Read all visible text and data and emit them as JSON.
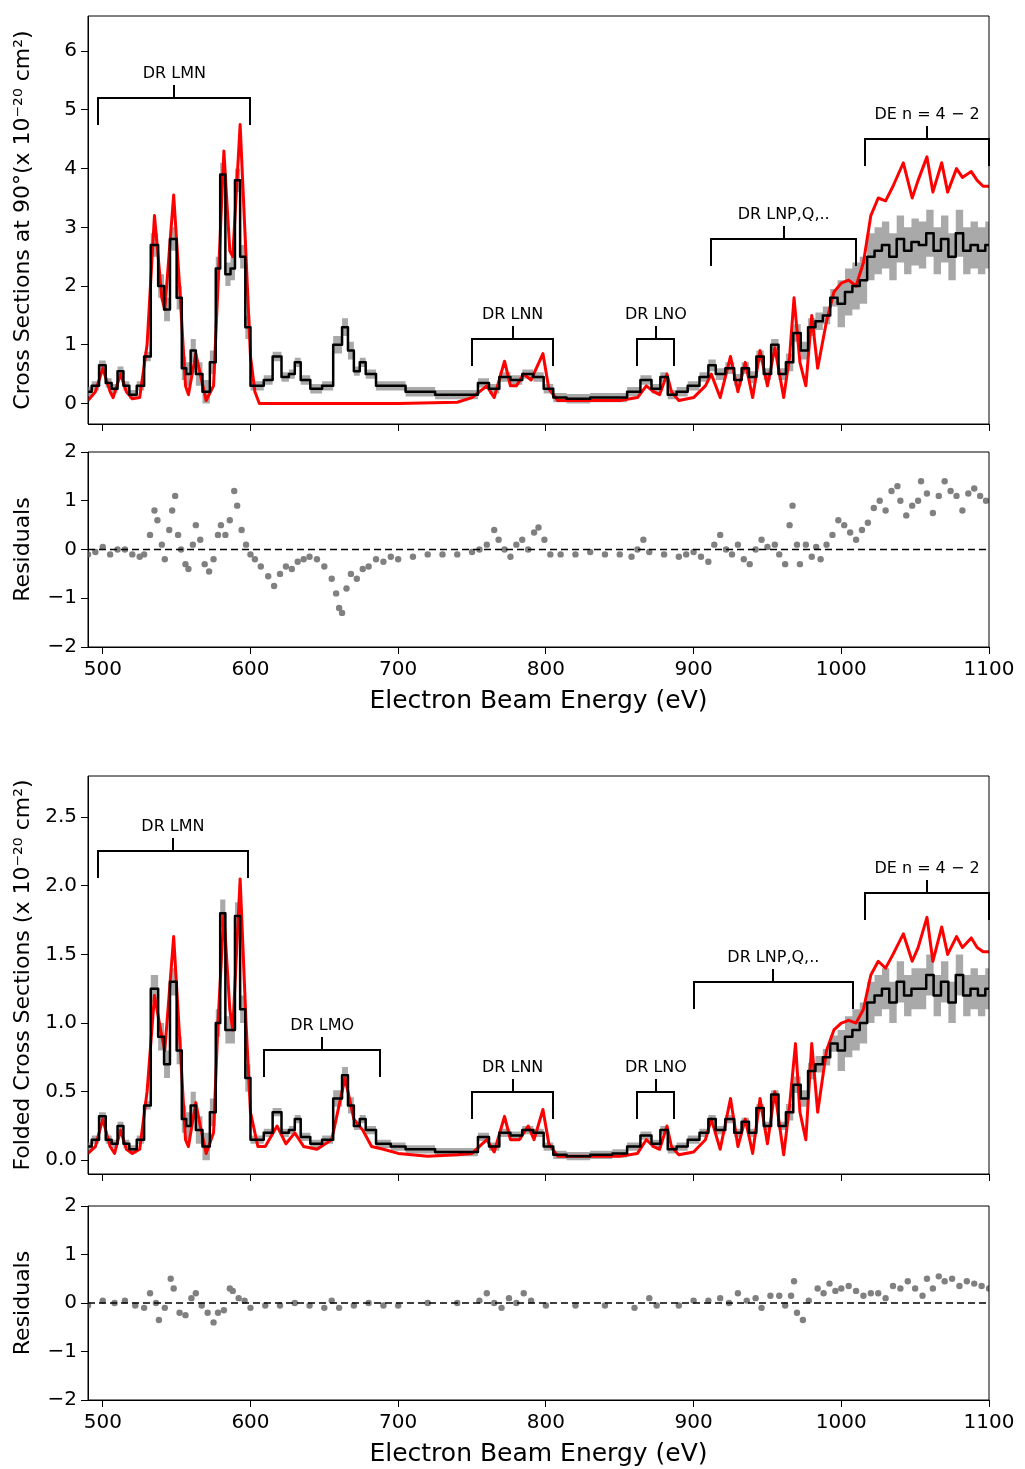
{
  "chart_data": [
    {
      "type": "line",
      "ylabel": "Cross Sections at 90°(x 10⁻²⁰ cm²)",
      "xlim": [
        490,
        1100
      ],
      "xticks": [
        500,
        600,
        700,
        800,
        900,
        1000,
        1100
      ],
      "ylim": [
        -0.35,
        6.6
      ],
      "yticks": [
        0,
        1,
        2,
        3,
        4,
        5,
        6
      ],
      "tick_labels": "y",
      "series": [
        {
          "color": "#ff0000",
          "x": [
            490,
            495,
            500,
            505,
            507,
            512,
            516,
            520,
            525,
            530,
            535,
            540,
            542,
            548,
            552,
            556,
            558,
            563,
            566,
            570,
            575,
            578,
            582,
            586,
            588,
            593,
            597,
            600,
            603,
            606,
            700,
            740,
            750,
            760,
            765,
            772,
            776,
            780,
            785,
            790,
            798,
            802,
            808,
            850,
            862,
            868,
            873,
            877,
            882,
            885,
            890,
            900,
            908,
            912,
            918,
            925,
            930,
            935,
            940,
            945,
            950,
            955,
            961,
            965,
            968,
            972,
            976,
            980,
            984,
            990,
            995,
            1000,
            1005,
            1010,
            1015,
            1020,
            1025,
            1030,
            1035,
            1042,
            1048,
            1052,
            1058,
            1062,
            1068,
            1072,
            1078,
            1082,
            1088,
            1092,
            1096,
            1100
          ],
          "values": [
            0.05,
            0.2,
            0.6,
            0.2,
            0.1,
            0.5,
            0.2,
            0.08,
            0.1,
            1.0,
            3.2,
            1.8,
            1.6,
            3.55,
            2.0,
            0.3,
            0.15,
            0.85,
            0.5,
            0.05,
            0.3,
            2.0,
            4.3,
            2.6,
            2.5,
            4.75,
            2.5,
            0.8,
            0.2,
            0.0,
            0.0,
            0.02,
            0.1,
            0.3,
            0.1,
            0.72,
            0.3,
            0.3,
            0.5,
            0.4,
            0.85,
            0.25,
            0.05,
            0.05,
            0.1,
            0.3,
            0.2,
            0.15,
            0.5,
            0.2,
            0.05,
            0.1,
            0.3,
            0.5,
            0.1,
            0.8,
            0.2,
            0.7,
            0.1,
            0.9,
            0.3,
            0.95,
            0.1,
            0.8,
            1.8,
            0.7,
            0.3,
            1.5,
            0.6,
            1.4,
            1.9,
            2.05,
            2.1,
            2.0,
            2.4,
            3.2,
            3.5,
            3.45,
            3.7,
            4.1,
            3.5,
            3.8,
            4.2,
            3.6,
            4.1,
            3.6,
            4.0,
            3.85,
            3.95,
            3.8,
            3.7,
            3.7
          ]
        },
        {
          "type": "step",
          "color": "#000000",
          "x": [
            490,
            495,
            500,
            504,
            508,
            512,
            516,
            520,
            526,
            530,
            535,
            540,
            543,
            548,
            552,
            555,
            558,
            561,
            565,
            570,
            575,
            578,
            581,
            585,
            588,
            591,
            595,
            598,
            602,
            606,
            612,
            618,
            624,
            628,
            632,
            636,
            645,
            652,
            660,
            664,
            668,
            672,
            676,
            680,
            690,
            700,
            710,
            720,
            730,
            740,
            750,
            758,
            765,
            772,
            780,
            788,
            795,
            802,
            808,
            820,
            840,
            850,
            860,
            868,
            875,
            880,
            885,
            892,
            900,
            908,
            912,
            918,
            925,
            930,
            935,
            940,
            945,
            950,
            955,
            960,
            965,
            970,
            975,
            980,
            985,
            990,
            995,
            1000,
            1005,
            1010,
            1015,
            1020,
            1025,
            1030,
            1035,
            1040,
            1045,
            1050,
            1055,
            1060,
            1065,
            1070,
            1075,
            1080,
            1085,
            1090,
            1095,
            1100
          ],
          "values": [
            0.2,
            0.3,
            0.65,
            0.35,
            0.25,
            0.55,
            0.3,
            0.15,
            0.3,
            0.8,
            2.7,
            2.0,
            1.6,
            2.8,
            1.8,
            0.6,
            0.5,
            0.9,
            0.5,
            0.2,
            0.7,
            2.3,
            3.9,
            2.2,
            2.3,
            3.8,
            2.5,
            1.3,
            0.3,
            0.3,
            0.4,
            0.8,
            0.45,
            0.5,
            0.7,
            0.4,
            0.25,
            0.3,
            1.0,
            1.3,
            0.9,
            0.55,
            0.7,
            0.5,
            0.3,
            0.3,
            0.2,
            0.2,
            0.15,
            0.15,
            0.15,
            0.35,
            0.25,
            0.45,
            0.4,
            0.5,
            0.45,
            0.25,
            0.1,
            0.08,
            0.1,
            0.1,
            0.2,
            0.4,
            0.25,
            0.45,
            0.15,
            0.2,
            0.3,
            0.45,
            0.65,
            0.5,
            0.6,
            0.4,
            0.6,
            0.45,
            0.8,
            0.5,
            1.0,
            0.5,
            0.7,
            1.2,
            0.9,
            1.3,
            1.4,
            1.5,
            1.8,
            1.7,
            1.9,
            2.0,
            2.1,
            2.5,
            2.6,
            2.7,
            2.5,
            2.8,
            2.6,
            2.75,
            2.7,
            2.9,
            2.6,
            2.8,
            2.5,
            2.9,
            2.6,
            2.7,
            2.6,
            2.7
          ],
          "lower": [
            0.12,
            0.22,
            0.57,
            0.27,
            0.17,
            0.47,
            0.22,
            0.07,
            0.22,
            0.72,
            2.5,
            1.8,
            1.4,
            2.6,
            1.6,
            0.4,
            0.3,
            0.7,
            0.3,
            0.0,
            0.5,
            2.1,
            3.7,
            2.0,
            2.1,
            3.6,
            2.3,
            1.1,
            0.22,
            0.22,
            0.32,
            0.72,
            0.37,
            0.42,
            0.62,
            0.32,
            0.17,
            0.22,
            0.85,
            1.15,
            0.75,
            0.47,
            0.62,
            0.42,
            0.22,
            0.22,
            0.12,
            0.12,
            0.07,
            0.07,
            0.07,
            0.27,
            0.17,
            0.37,
            0.32,
            0.42,
            0.37,
            0.17,
            0.02,
            0.0,
            0.02,
            0.02,
            0.12,
            0.32,
            0.17,
            0.37,
            0.07,
            0.12,
            0.22,
            0.37,
            0.55,
            0.4,
            0.5,
            0.3,
            0.5,
            0.35,
            0.7,
            0.4,
            0.9,
            0.4,
            0.55,
            1.05,
            0.75,
            1.15,
            1.25,
            1.35,
            1.65,
            1.3,
            1.5,
            1.6,
            1.7,
            2.1,
            2.2,
            2.3,
            2.1,
            2.4,
            2.2,
            2.35,
            2.3,
            2.5,
            2.2,
            2.4,
            2.1,
            2.5,
            2.2,
            2.3,
            2.2,
            2.3
          ],
          "upper": [
            0.28,
            0.38,
            0.73,
            0.43,
            0.33,
            0.63,
            0.38,
            0.23,
            0.38,
            0.88,
            2.9,
            2.2,
            1.8,
            3.0,
            2.0,
            0.8,
            0.7,
            1.1,
            0.7,
            0.4,
            0.9,
            2.5,
            4.1,
            2.4,
            2.5,
            4.0,
            2.7,
            1.5,
            0.38,
            0.38,
            0.48,
            0.88,
            0.53,
            0.58,
            0.78,
            0.48,
            0.33,
            0.38,
            1.15,
            1.45,
            1.05,
            0.63,
            0.78,
            0.58,
            0.38,
            0.38,
            0.28,
            0.28,
            0.23,
            0.23,
            0.23,
            0.43,
            0.33,
            0.53,
            0.48,
            0.58,
            0.53,
            0.33,
            0.18,
            0.16,
            0.18,
            0.18,
            0.28,
            0.48,
            0.33,
            0.53,
            0.23,
            0.28,
            0.38,
            0.53,
            0.75,
            0.6,
            0.7,
            0.5,
            0.7,
            0.55,
            0.9,
            0.6,
            1.1,
            0.6,
            0.85,
            1.35,
            1.05,
            1.45,
            1.55,
            1.65,
            1.95,
            2.1,
            2.3,
            2.4,
            2.5,
            2.9,
            3.0,
            3.1,
            2.9,
            3.2,
            3.0,
            3.15,
            3.1,
            3.3,
            3.0,
            3.2,
            2.9,
            3.3,
            3.0,
            3.1,
            3.0,
            3.1
          ]
        }
      ],
      "annotations": [
        "DR LMN",
        "DR LNN",
        "DR LNO",
        "DR LNP,Q,..",
        "DE n = 4 − 2"
      ]
    },
    {
      "type": "scatter",
      "ylabel": "Residuals",
      "xlabel": "Electron Beam Energy (eV)",
      "xlim": [
        490,
        1100
      ],
      "xticks": [
        500,
        600,
        700,
        800,
        900,
        1000,
        1100
      ],
      "ylim": [
        -2,
        2
      ],
      "yticks": [
        {
          "value": -2,
          "label": "−2"
        },
        {
          "value": -1,
          "label": "−1"
        },
        0,
        1,
        2
      ],
      "marker": "circle",
      "color": "#808080",
      "x": [
        490,
        495,
        500,
        505,
        510,
        515,
        520,
        525,
        528,
        532,
        535,
        537,
        540,
        542,
        545,
        547,
        549,
        551,
        553,
        556,
        558,
        561,
        563,
        566,
        569,
        572,
        575,
        578,
        580,
        583,
        586,
        589,
        591,
        594,
        597,
        600,
        603,
        607,
        612,
        616,
        620,
        624,
        628,
        632,
        636,
        640,
        645,
        650,
        655,
        658,
        660,
        662,
        665,
        668,
        672,
        676,
        680,
        685,
        690,
        695,
        700,
        710,
        720,
        730,
        740,
        750,
        755,
        760,
        765,
        768,
        772,
        776,
        780,
        784,
        788,
        792,
        795,
        799,
        803,
        810,
        820,
        830,
        840,
        850,
        858,
        862,
        866,
        870,
        880,
        890,
        895,
        900,
        905,
        910,
        914,
        918,
        922,
        926,
        930,
        934,
        938,
        942,
        946,
        950,
        955,
        958,
        962,
        965,
        967,
        970,
        972,
        976,
        980,
        983,
        986,
        990,
        994,
        998,
        1002,
        1006,
        1010,
        1014,
        1018,
        1022,
        1026,
        1030,
        1034,
        1038,
        1040,
        1044,
        1048,
        1052,
        1054,
        1058,
        1062,
        1066,
        1070,
        1074,
        1078,
        1082,
        1086,
        1090,
        1094,
        1098
      ],
      "values": [
        -0.1,
        -0.05,
        0.05,
        -0.1,
        0.0,
        0.0,
        -0.1,
        -0.15,
        -0.1,
        0.3,
        0.8,
        0.6,
        0.1,
        -0.2,
        0.4,
        0.8,
        1.1,
        0.3,
        0.0,
        -0.3,
        -0.4,
        0.1,
        0.5,
        0.2,
        -0.3,
        -0.45,
        -0.2,
        0.3,
        0.5,
        0.3,
        0.6,
        1.2,
        0.9,
        0.4,
        0.1,
        -0.1,
        -0.2,
        -0.35,
        -0.55,
        -0.75,
        -0.5,
        -0.35,
        -0.4,
        -0.25,
        -0.2,
        -0.15,
        -0.2,
        -0.35,
        -0.6,
        -0.9,
        -1.2,
        -1.3,
        -0.8,
        -0.5,
        -0.6,
        -0.4,
        -0.35,
        -0.2,
        -0.25,
        -0.15,
        -0.2,
        -0.15,
        -0.1,
        -0.1,
        -0.1,
        -0.05,
        0.0,
        0.1,
        0.4,
        0.2,
        0.0,
        -0.15,
        0.1,
        0.2,
        0.0,
        0.35,
        0.45,
        0.2,
        -0.1,
        -0.1,
        -0.1,
        -0.05,
        -0.1,
        -0.1,
        -0.15,
        0.0,
        0.2,
        -0.05,
        -0.1,
        -0.15,
        -0.1,
        -0.05,
        -0.15,
        -0.25,
        0.1,
        0.3,
        0.0,
        -0.1,
        0.1,
        -0.2,
        -0.3,
        0.0,
        0.2,
        0.05,
        0.1,
        -0.1,
        -0.3,
        0.5,
        0.9,
        0.1,
        -0.3,
        0.1,
        -0.15,
        0.05,
        -0.2,
        0.1,
        0.3,
        0.6,
        0.5,
        0.35,
        0.2,
        0.4,
        0.55,
        0.85,
        1.0,
        0.8,
        1.2,
        1.3,
        1.0,
        0.7,
        0.9,
        1.0,
        1.4,
        1.15,
        0.75,
        1.1,
        1.4,
        1.2,
        1.1,
        0.8,
        1.15,
        1.25,
        1.1,
        1.0
      ],
      "ref_lines": [
        {
          "axis": "y",
          "value": 0,
          "color": "#000000",
          "line_style": "dashed"
        }
      ]
    },
    {
      "type": "line",
      "ylabel": "Folded Cross Sections (x 10⁻²⁰ cm²)",
      "xlim": [
        490,
        1100
      ],
      "xticks": [
        500,
        600,
        700,
        800,
        900,
        1000,
        1100
      ],
      "ylim": [
        -0.1,
        2.8
      ],
      "yticks": [
        {
          "value": 0,
          "label": "0.0"
        },
        {
          "value": 0.5,
          "label": "0.5"
        },
        {
          "value": 1,
          "label": "1.0"
        },
        {
          "value": 1.5,
          "label": "1.5"
        },
        {
          "value": 2,
          "label": "2.0"
        },
        {
          "value": 2.5,
          "label": "2.5"
        }
      ],
      "tick_labels": "y",
      "series": [
        {
          "color": "#ff0000",
          "x": [
            490,
            495,
            500,
            505,
            508,
            512,
            516,
            520,
            525,
            530,
            535,
            540,
            542,
            548,
            552,
            556,
            558,
            563,
            566,
            570,
            575,
            578,
            582,
            586,
            588,
            593,
            597,
            600,
            605,
            610,
            618,
            624,
            630,
            636,
            645,
            655,
            664,
            670,
            676,
            682,
            690,
            700,
            720,
            740,
            750,
            760,
            765,
            772,
            776,
            782,
            788,
            792,
            798,
            802,
            808,
            850,
            862,
            868,
            873,
            877,
            882,
            885,
            890,
            900,
            908,
            912,
            918,
            925,
            930,
            935,
            940,
            945,
            950,
            955,
            961,
            965,
            969,
            972,
            976,
            980,
            984,
            990,
            995,
            1000,
            1005,
            1010,
            1015,
            1020,
            1025,
            1030,
            1035,
            1042,
            1048,
            1052,
            1058,
            1062,
            1068,
            1072,
            1078,
            1082,
            1088,
            1092,
            1096,
            1100
          ],
          "values": [
            0.05,
            0.1,
            0.3,
            0.1,
            0.05,
            0.22,
            0.08,
            0.05,
            0.08,
            0.5,
            1.2,
            0.9,
            0.8,
            1.63,
            0.9,
            0.15,
            0.1,
            0.42,
            0.25,
            0.05,
            0.2,
            1.0,
            1.8,
            1.1,
            0.95,
            2.05,
            1.0,
            0.35,
            0.1,
            0.1,
            0.25,
            0.12,
            0.2,
            0.1,
            0.08,
            0.15,
            0.6,
            0.3,
            0.22,
            0.1,
            0.08,
            0.05,
            0.03,
            0.04,
            0.05,
            0.15,
            0.06,
            0.32,
            0.15,
            0.15,
            0.25,
            0.15,
            0.37,
            0.12,
            0.03,
            0.03,
            0.05,
            0.15,
            0.1,
            0.08,
            0.25,
            0.1,
            0.04,
            0.06,
            0.15,
            0.3,
            0.08,
            0.45,
            0.1,
            0.3,
            0.05,
            0.45,
            0.12,
            0.5,
            0.04,
            0.4,
            0.85,
            0.35,
            0.15,
            0.85,
            0.35,
            0.8,
            0.95,
            1.0,
            1.02,
            1.0,
            1.1,
            1.35,
            1.45,
            1.4,
            1.5,
            1.65,
            1.45,
            1.55,
            1.77,
            1.45,
            1.7,
            1.5,
            1.63,
            1.55,
            1.62,
            1.55,
            1.52,
            1.52
          ]
        },
        {
          "type": "step",
          "color": "#000000",
          "x": [
            490,
            495,
            500,
            504,
            508,
            512,
            516,
            520,
            526,
            530,
            535,
            540,
            543,
            548,
            552,
            555,
            558,
            561,
            565,
            570,
            575,
            578,
            581,
            585,
            588,
            591,
            595,
            598,
            602,
            606,
            612,
            618,
            624,
            628,
            632,
            636,
            645,
            652,
            660,
            664,
            668,
            672,
            676,
            680,
            690,
            700,
            710,
            720,
            730,
            740,
            750,
            758,
            765,
            772,
            780,
            788,
            795,
            802,
            808,
            820,
            840,
            850,
            860,
            868,
            875,
            880,
            885,
            892,
            900,
            908,
            912,
            918,
            925,
            930,
            935,
            940,
            945,
            950,
            955,
            960,
            965,
            970,
            975,
            980,
            985,
            990,
            995,
            1000,
            1005,
            1010,
            1015,
            1020,
            1025,
            1030,
            1035,
            1040,
            1045,
            1050,
            1055,
            1060,
            1065,
            1070,
            1075,
            1080,
            1085,
            1090,
            1095,
            1100
          ],
          "values": [
            0.1,
            0.15,
            0.32,
            0.15,
            0.12,
            0.25,
            0.12,
            0.08,
            0.15,
            0.4,
            1.25,
            0.9,
            0.7,
            1.3,
            0.8,
            0.3,
            0.25,
            0.4,
            0.22,
            0.1,
            0.35,
            1.0,
            1.8,
            0.95,
            0.95,
            1.78,
            1.1,
            0.6,
            0.15,
            0.15,
            0.2,
            0.35,
            0.2,
            0.22,
            0.3,
            0.17,
            0.12,
            0.15,
            0.45,
            0.62,
            0.4,
            0.25,
            0.3,
            0.22,
            0.12,
            0.1,
            0.08,
            0.08,
            0.06,
            0.06,
            0.06,
            0.17,
            0.1,
            0.2,
            0.18,
            0.22,
            0.2,
            0.1,
            0.04,
            0.03,
            0.04,
            0.05,
            0.1,
            0.18,
            0.12,
            0.22,
            0.08,
            0.1,
            0.15,
            0.2,
            0.3,
            0.22,
            0.3,
            0.2,
            0.28,
            0.2,
            0.38,
            0.25,
            0.48,
            0.25,
            0.35,
            0.55,
            0.45,
            0.65,
            0.7,
            0.75,
            0.85,
            0.8,
            0.9,
            0.95,
            1.0,
            1.15,
            1.2,
            1.25,
            1.15,
            1.3,
            1.2,
            1.25,
            1.25,
            1.35,
            1.2,
            1.3,
            1.15,
            1.35,
            1.2,
            1.25,
            1.2,
            1.25
          ],
          "lower": [
            0.07,
            0.12,
            0.29,
            0.12,
            0.09,
            0.22,
            0.09,
            0.05,
            0.12,
            0.37,
            1.15,
            0.8,
            0.6,
            1.2,
            0.7,
            0.2,
            0.15,
            0.3,
            0.12,
            0.0,
            0.25,
            0.9,
            1.7,
            0.85,
            0.85,
            1.68,
            1.0,
            0.5,
            0.12,
            0.12,
            0.17,
            0.32,
            0.17,
            0.19,
            0.27,
            0.14,
            0.09,
            0.12,
            0.39,
            0.56,
            0.34,
            0.22,
            0.27,
            0.19,
            0.09,
            0.07,
            0.05,
            0.05,
            0.03,
            0.03,
            0.03,
            0.14,
            0.07,
            0.17,
            0.15,
            0.19,
            0.17,
            0.07,
            0.01,
            0.0,
            0.01,
            0.02,
            0.07,
            0.15,
            0.09,
            0.19,
            0.05,
            0.07,
            0.12,
            0.17,
            0.27,
            0.19,
            0.27,
            0.17,
            0.25,
            0.17,
            0.35,
            0.22,
            0.45,
            0.22,
            0.29,
            0.49,
            0.39,
            0.59,
            0.64,
            0.69,
            0.79,
            0.65,
            0.75,
            0.8,
            0.85,
            1.0,
            1.05,
            1.1,
            1.0,
            1.15,
            1.05,
            1.1,
            1.1,
            1.2,
            1.05,
            1.15,
            1.0,
            1.2,
            1.05,
            1.1,
            1.05,
            1.1
          ],
          "upper": [
            0.13,
            0.18,
            0.35,
            0.18,
            0.15,
            0.28,
            0.15,
            0.11,
            0.18,
            0.43,
            1.35,
            1.0,
            0.8,
            1.4,
            0.9,
            0.4,
            0.35,
            0.5,
            0.32,
            0.2,
            0.45,
            1.1,
            1.9,
            1.05,
            1.05,
            1.88,
            1.2,
            0.7,
            0.18,
            0.18,
            0.23,
            0.38,
            0.23,
            0.25,
            0.33,
            0.2,
            0.15,
            0.18,
            0.51,
            0.68,
            0.46,
            0.28,
            0.33,
            0.25,
            0.15,
            0.13,
            0.11,
            0.11,
            0.09,
            0.09,
            0.09,
            0.2,
            0.13,
            0.23,
            0.21,
            0.25,
            0.23,
            0.13,
            0.07,
            0.06,
            0.07,
            0.08,
            0.13,
            0.21,
            0.15,
            0.25,
            0.11,
            0.13,
            0.18,
            0.23,
            0.33,
            0.25,
            0.33,
            0.23,
            0.31,
            0.23,
            0.41,
            0.28,
            0.51,
            0.28,
            0.41,
            0.61,
            0.51,
            0.71,
            0.76,
            0.81,
            0.91,
            0.95,
            1.05,
            1.1,
            1.15,
            1.3,
            1.35,
            1.4,
            1.3,
            1.45,
            1.35,
            1.4,
            1.4,
            1.5,
            1.35,
            1.45,
            1.3,
            1.5,
            1.35,
            1.4,
            1.35,
            1.4
          ]
        }
      ],
      "annotations": [
        "DR LMN",
        "DR LMO",
        "DR LNN",
        "DR LNO",
        "DR LNP,Q,..",
        "DE n = 4 − 2"
      ]
    },
    {
      "type": "scatter",
      "ylabel": "Residuals",
      "xlabel": "Electron Beam Energy (eV)",
      "xlim": [
        490,
        1100
      ],
      "xticks": [
        500,
        600,
        700,
        800,
        900,
        1000,
        1100
      ],
      "ylim": [
        -2,
        2
      ],
      "yticks": [
        {
          "value": -2,
          "label": "−2"
        },
        {
          "value": -1,
          "label": "−1"
        },
        0,
        1,
        2
      ],
      "marker": "circle",
      "color": "#808080",
      "x": [
        490,
        500,
        508,
        515,
        522,
        528,
        532,
        536,
        538,
        542,
        546,
        548,
        552,
        556,
        560,
        563,
        567,
        571,
        575,
        578,
        582,
        586,
        588,
        592,
        596,
        600,
        610,
        620,
        630,
        640,
        650,
        655,
        660,
        670,
        680,
        690,
        700,
        720,
        740,
        755,
        760,
        765,
        770,
        775,
        780,
        785,
        790,
        800,
        820,
        840,
        860,
        870,
        875,
        890,
        900,
        910,
        918,
        924,
        930,
        936,
        942,
        946,
        952,
        958,
        962,
        966,
        968,
        970,
        974,
        978,
        984,
        988,
        992,
        996,
        1000,
        1005,
        1010,
        1015,
        1020,
        1025,
        1030,
        1035,
        1040,
        1045,
        1050,
        1055,
        1058,
        1062,
        1066,
        1070,
        1075,
        1080,
        1085,
        1090,
        1095,
        1100
      ],
      "values": [
        -0.05,
        0.05,
        0.0,
        0.05,
        -0.05,
        -0.1,
        0.2,
        0.0,
        -0.35,
        -0.1,
        0.5,
        0.3,
        -0.2,
        -0.25,
        0.1,
        0.2,
        -0.05,
        -0.2,
        -0.4,
        -0.2,
        -0.15,
        0.3,
        0.25,
        0.1,
        0.05,
        -0.1,
        -0.05,
        -0.05,
        0.0,
        -0.05,
        -0.1,
        0.05,
        -0.1,
        -0.05,
        0.0,
        -0.05,
        -0.05,
        0.0,
        0.0,
        0.05,
        0.2,
        0.0,
        -0.1,
        0.1,
        0.0,
        0.2,
        0.05,
        -0.05,
        -0.05,
        -0.05,
        -0.1,
        0.1,
        -0.05,
        -0.05,
        0.05,
        0.05,
        0.1,
        0.0,
        0.2,
        0.05,
        0.1,
        -0.1,
        0.15,
        0.15,
        -0.05,
        0.15,
        0.45,
        -0.2,
        -0.35,
        0.05,
        0.3,
        0.2,
        0.4,
        0.25,
        0.3,
        0.35,
        0.25,
        0.15,
        0.2,
        0.2,
        0.1,
        0.35,
        0.3,
        0.45,
        0.3,
        0.15,
        0.5,
        0.3,
        0.55,
        0.45,
        0.5,
        0.35,
        0.45,
        0.4,
        0.35,
        0.3
      ],
      "ref_lines": [
        {
          "axis": "y",
          "value": 0,
          "color": "#000000",
          "line_style": "dashed"
        }
      ]
    }
  ]
}
